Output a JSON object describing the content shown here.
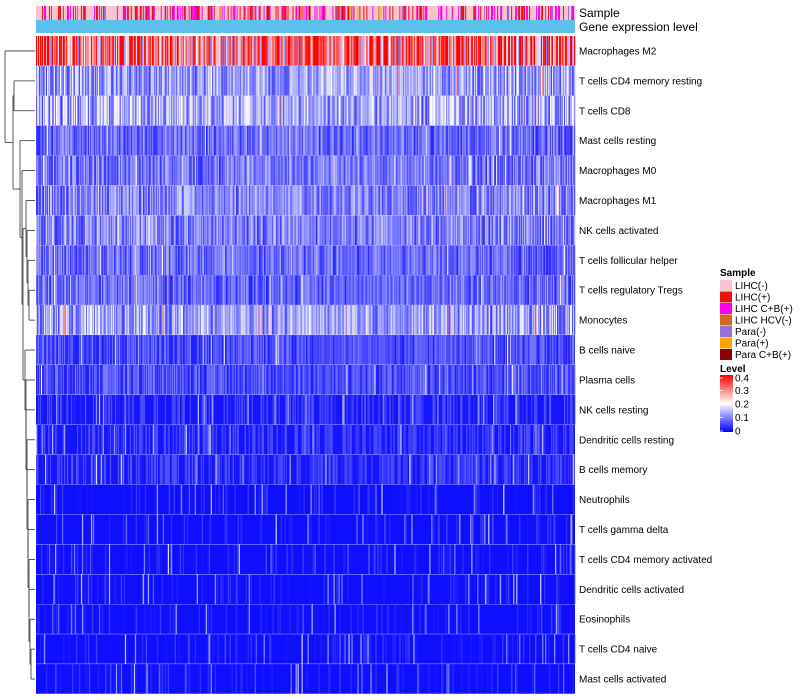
{
  "chart_data": {
    "type": "heatmap",
    "title": "",
    "annotation_rows": [
      "Sample",
      "Gene expression level"
    ],
    "rows": [
      "Macrophages M2",
      "T cells CD4 memory resting",
      "T cells CD8",
      "Mast cells resting",
      "Macrophages M0",
      "Macrophages M1",
      "NK cells activated",
      "T cells follicular helper",
      "T cells regulatory  Tregs",
      "Monocytes",
      "B cells naive",
      "Plasma cells",
      "NK cells resting",
      "Dendritic cells resting",
      "B cells memory",
      "Neutrophils",
      "T cells gamma delta",
      "T cells CD4 memory activated",
      "Dendritic cells activated",
      "Eosinophils",
      "T cells CD4 naive",
      "Mast cells activated"
    ],
    "approx_mean_levels": [
      0.28,
      0.12,
      0.13,
      0.08,
      0.09,
      0.1,
      0.1,
      0.08,
      0.08,
      0.12,
      0.06,
      0.06,
      0.04,
      0.04,
      0.04,
      0.03,
      0.03,
      0.03,
      0.03,
      0.03,
      0.03,
      0.03
    ],
    "n_samples": 540,
    "sample_legend": {
      "title": "Sample",
      "items": [
        {
          "label": "LIHC(-)",
          "color": "#f7c4cf"
        },
        {
          "label": "LIHC(+)",
          "color": "#ee1111"
        },
        {
          "label": "LIHC C+B(+)",
          "color": "#ff00ee"
        },
        {
          "label": "LIHC HCV(-)",
          "color": "#d2691e"
        },
        {
          "label": "Para(-)",
          "color": "#9370db"
        },
        {
          "label": "Para(+)",
          "color": "#ffa500"
        },
        {
          "label": "Para C+B(+)",
          "color": "#8b0000"
        }
      ]
    },
    "level_legend": {
      "title": "Level",
      "ticks": [
        "0.4",
        "0.3",
        "0.2",
        "0.1",
        "0"
      ],
      "range": [
        0,
        0.4
      ],
      "colors": [
        "#0000ff",
        "#ffffff",
        "#ff0000"
      ]
    },
    "expression_bar_color": "#5bc0eb"
  }
}
